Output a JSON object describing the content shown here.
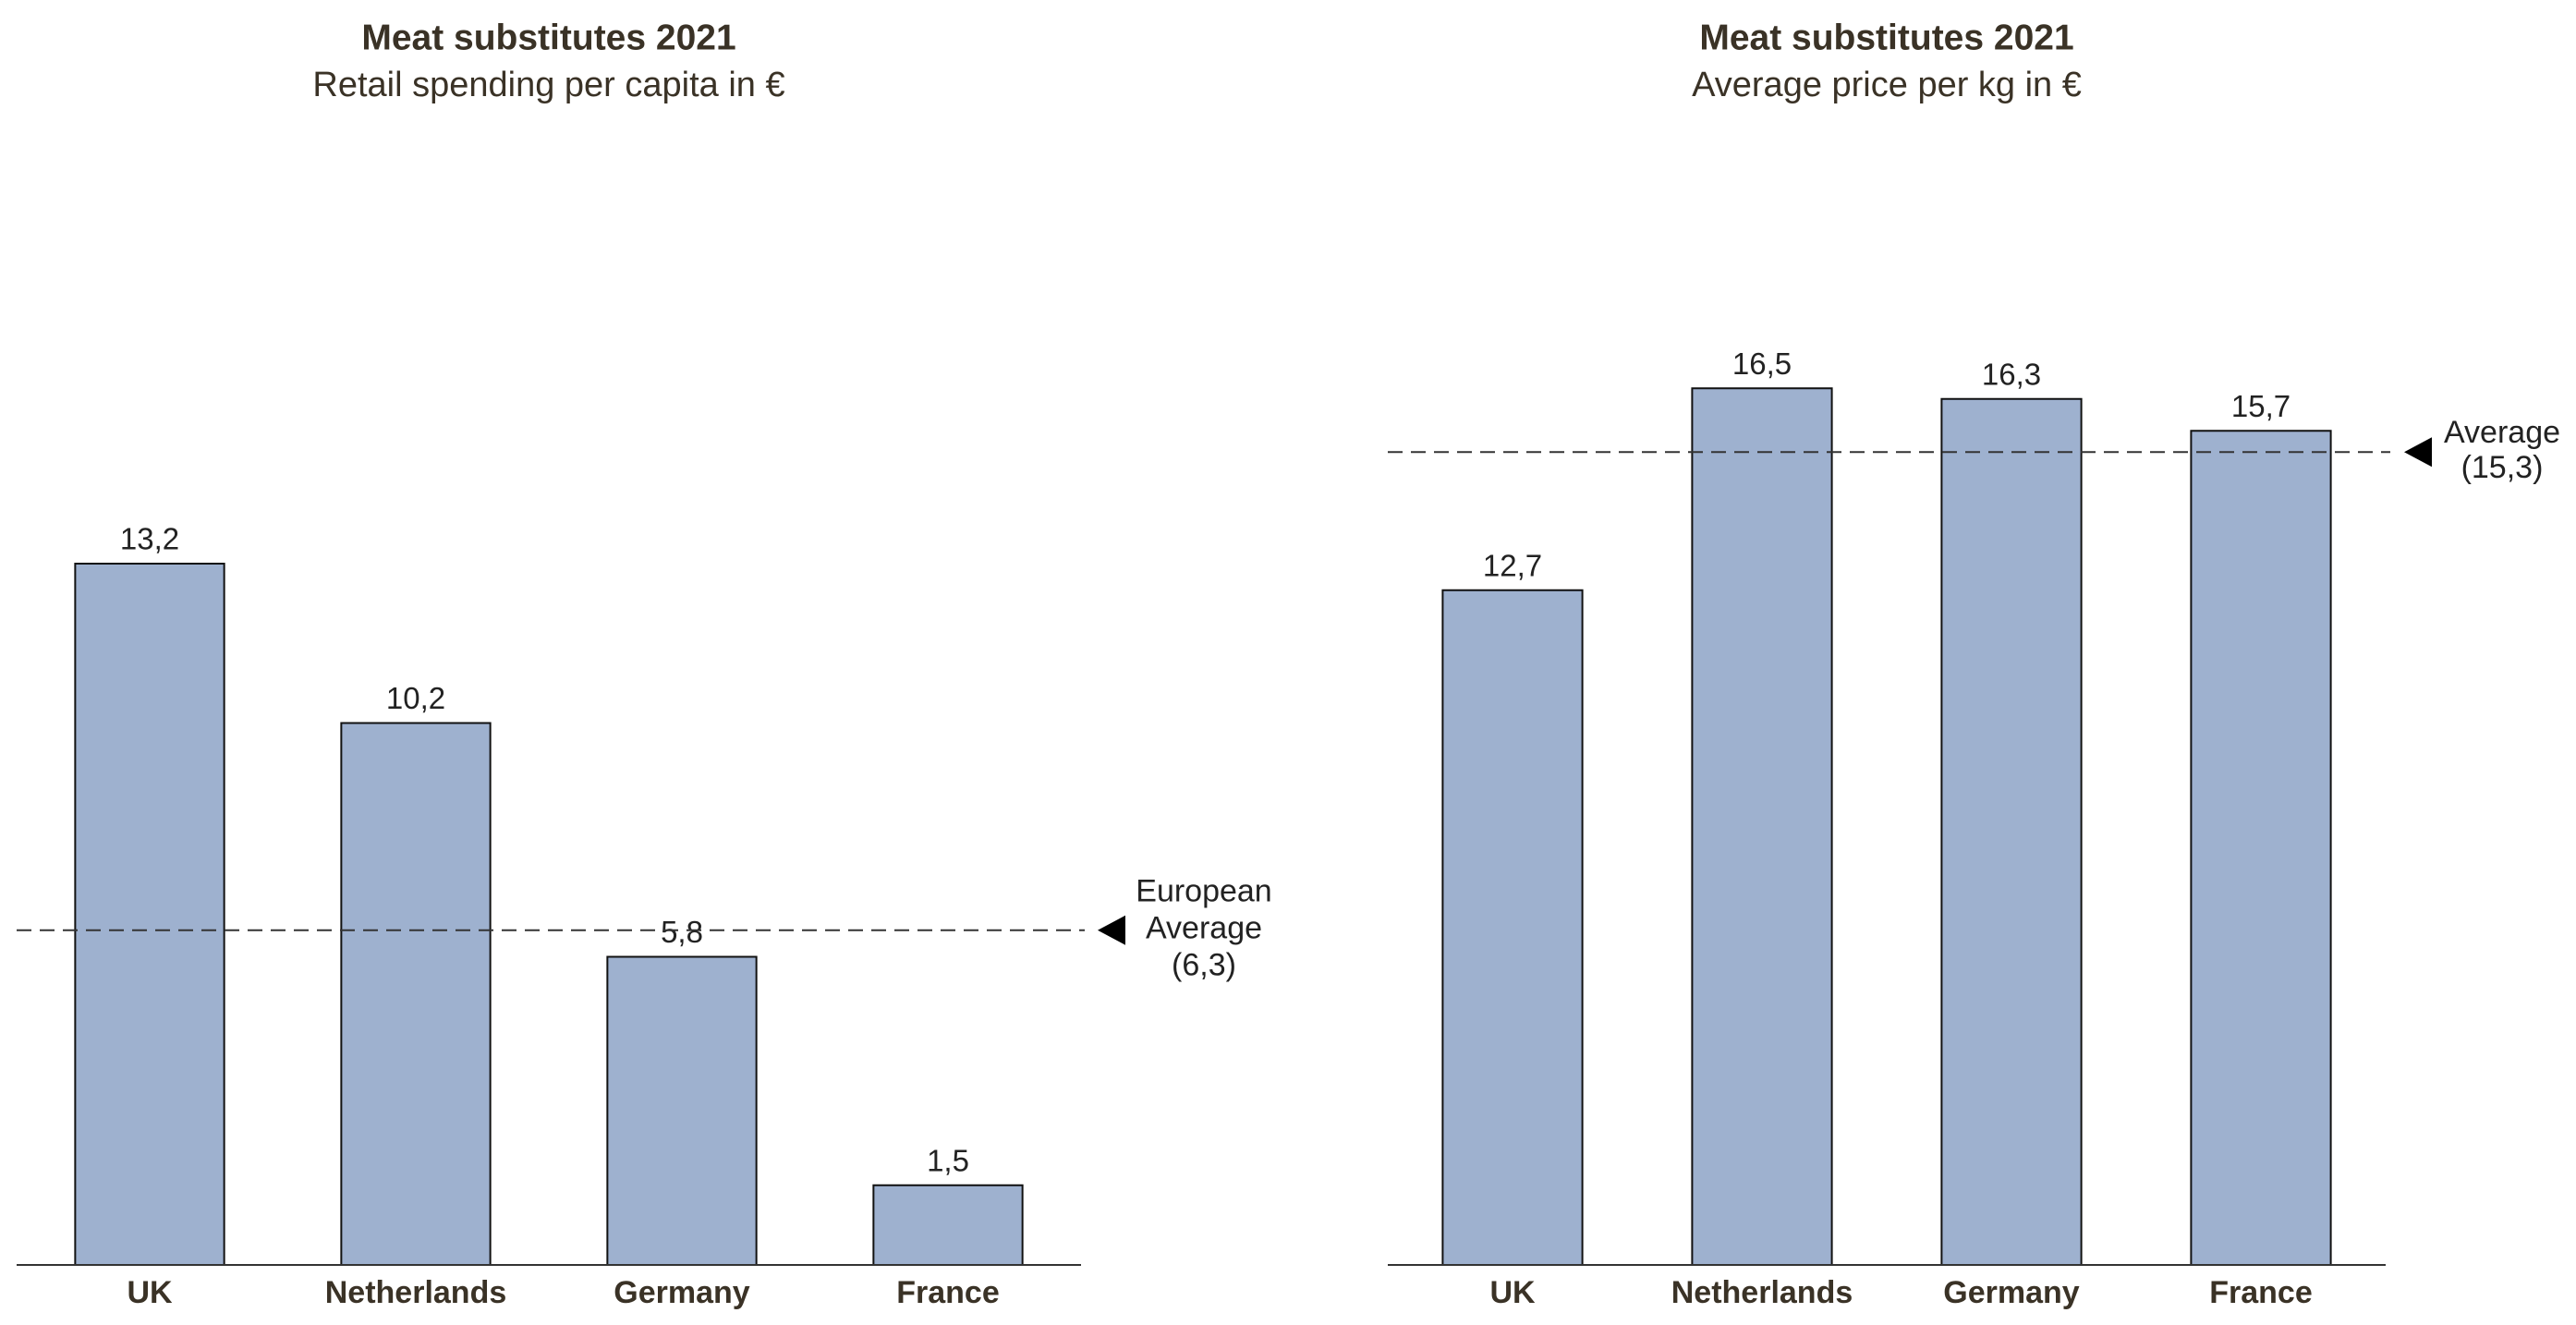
{
  "chart_data": [
    {
      "type": "bar",
      "title": "Meat substitutes 2021",
      "subtitle": "Retail spending per capita in €",
      "categories": [
        "UK",
        "Netherlands",
        "Germany",
        "France"
      ],
      "values": [
        13.2,
        10.2,
        5.8,
        1.5
      ],
      "value_labels": [
        "13,2",
        "10,2",
        "5,8",
        "1,5"
      ],
      "color": "#9eb1cf",
      "ylim": [
        0,
        18
      ],
      "reference": {
        "value": 6.3,
        "label": [
          "European",
          "Average",
          "(6,3)"
        ]
      }
    },
    {
      "type": "bar",
      "title": "Meat substitutes 2021",
      "subtitle": "Average price per kg in €",
      "categories": [
        "UK",
        "Netherlands",
        "Germany",
        "France"
      ],
      "values": [
        12.7,
        16.5,
        16.3,
        15.7
      ],
      "value_labels": [
        "12,7",
        "16,5",
        "16,3",
        "15,7"
      ],
      "color": "#9eb1cf",
      "ylim": [
        0,
        18
      ],
      "reference": {
        "value": 15.3,
        "label": [
          "Average",
          "(15,3)"
        ]
      }
    }
  ]
}
